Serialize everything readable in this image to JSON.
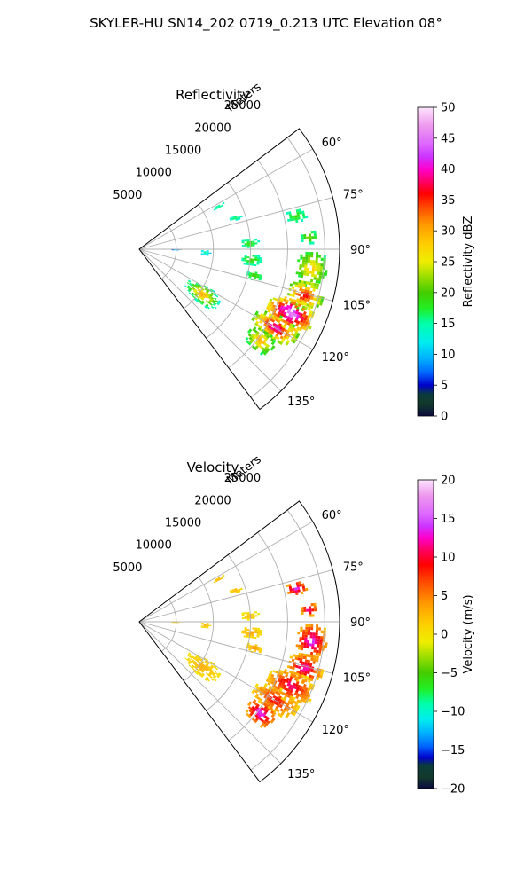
{
  "figure_title": "SKYLER-HU  SN14_202  0719_0.213 UTC Elevation 08°",
  "range_label": "Meters",
  "range_ticks": [
    "5000",
    "10000",
    "15000",
    "20000",
    "25000"
  ],
  "azimuth_ticks": [
    "60°",
    "75°",
    "90°",
    "105°",
    "120°",
    "135°"
  ],
  "chart_data": [
    {
      "type": "polar-sector",
      "title": "Reflectivity",
      "azimuth_range_deg": [
        53,
        143
      ],
      "range_max_m": 27000,
      "range_ticks_m": [
        5000,
        10000,
        15000,
        20000,
        25000
      ],
      "azimuth_ticks_deg": [
        60,
        75,
        90,
        105,
        120,
        135
      ],
      "grid": true,
      "colorbar": {
        "label": "Reflectivity dBZ",
        "min": 0,
        "max": 50,
        "ticks": [
          "0",
          "5",
          "10",
          "15",
          "20",
          "25",
          "30",
          "35",
          "40",
          "45",
          "50"
        ],
        "stops": [
          {
            "v": 0,
            "c": "#0b0b40"
          },
          {
            "v": 2,
            "c": "#123a2a"
          },
          {
            "v": 3.5,
            "c": "#0b3c3c"
          },
          {
            "v": 5,
            "c": "#0000cc"
          },
          {
            "v": 7,
            "c": "#0066ff"
          },
          {
            "v": 9,
            "c": "#00aaff"
          },
          {
            "v": 12,
            "c": "#00eeee"
          },
          {
            "v": 15,
            "c": "#00ffaa"
          },
          {
            "v": 17.5,
            "c": "#22ee22"
          },
          {
            "v": 20,
            "c": "#44cc00"
          },
          {
            "v": 22.5,
            "c": "#99dd00"
          },
          {
            "v": 25,
            "c": "#eeee00"
          },
          {
            "v": 28,
            "c": "#ffcc00"
          },
          {
            "v": 31,
            "c": "#ff9900"
          },
          {
            "v": 34,
            "c": "#ff4400"
          },
          {
            "v": 36,
            "c": "#ff0000"
          },
          {
            "v": 38,
            "c": "#ff0066"
          },
          {
            "v": 40,
            "c": "#ff00cc"
          },
          {
            "v": 42,
            "c": "#cc33ff"
          },
          {
            "v": 44,
            "c": "#dd66ff"
          },
          {
            "v": 47,
            "c": "#ee99ee"
          },
          {
            "v": 50,
            "c": "#fce4fc"
          }
        ]
      },
      "echo_regions": [
        {
          "az_min": 60,
          "az_max": 63,
          "r_min": 11000,
          "r_max": 13000,
          "v_min": 13,
          "v_max": 16
        },
        {
          "az_min": 70,
          "az_max": 73,
          "r_min": 12500,
          "r_max": 14500,
          "v_min": 13,
          "v_max": 17
        },
        {
          "az_min": 75,
          "az_max": 80,
          "r_min": 20000,
          "r_max": 23000,
          "v_min": 14,
          "v_max": 19
        },
        {
          "az_min": 83,
          "az_max": 88,
          "r_min": 21500,
          "r_max": 24000,
          "v_min": 14,
          "v_max": 22
        },
        {
          "az_min": 84,
          "az_max": 89,
          "r_min": 13500,
          "r_max": 16000,
          "v_min": 14,
          "v_max": 19
        },
        {
          "az_min": 90,
          "az_max": 95,
          "r_min": 8000,
          "r_max": 9500,
          "v_min": 10,
          "v_max": 15
        },
        {
          "az_min": 92,
          "az_max": 98,
          "r_min": 13500,
          "r_max": 16500,
          "v_min": 14,
          "v_max": 20
        },
        {
          "az_min": 100,
          "az_max": 105,
          "r_min": 14500,
          "r_max": 17000,
          "v_min": 14,
          "v_max": 20
        },
        {
          "az_min": 90,
          "az_max": 102,
          "r_min": 21000,
          "r_max": 25500,
          "v_min": 16,
          "v_max": 28
        },
        {
          "az_min": 100,
          "az_max": 110,
          "r_min": 20500,
          "r_max": 25500,
          "v_min": 20,
          "v_max": 36
        },
        {
          "az_min": 107,
          "az_max": 118,
          "r_min": 18500,
          "r_max": 25500,
          "v_min": 24,
          "v_max": 45
        },
        {
          "az_min": 115,
          "az_max": 124,
          "r_min": 17500,
          "r_max": 24500,
          "v_min": 20,
          "v_max": 40
        },
        {
          "az_min": 122,
          "az_max": 131,
          "r_min": 18000,
          "r_max": 22500,
          "v_min": 16,
          "v_max": 30
        },
        {
          "az_min": 118,
          "az_max": 132,
          "r_min": 7500,
          "r_max": 13000,
          "v_min": 13,
          "v_max": 30
        },
        {
          "az_min": 89,
          "az_max": 92,
          "r_min": 4000,
          "r_max": 5500,
          "v_min": 3,
          "v_max": 12
        }
      ]
    },
    {
      "type": "polar-sector",
      "title": "Velocity",
      "azimuth_range_deg": [
        53,
        143
      ],
      "range_max_m": 27000,
      "range_ticks_m": [
        5000,
        10000,
        15000,
        20000,
        25000
      ],
      "azimuth_ticks_deg": [
        60,
        75,
        90,
        105,
        120,
        135
      ],
      "grid": true,
      "colorbar": {
        "label": "Velocity (m/s)",
        "min": -20,
        "max": 20,
        "ticks": [
          "−20",
          "−15",
          "−10",
          "−5",
          "0",
          "5",
          "10",
          "15",
          "20"
        ],
        "stops": [
          {
            "v": -20,
            "c": "#0b0b40"
          },
          {
            "v": -18.5,
            "c": "#123a2a"
          },
          {
            "v": -17,
            "c": "#0b3c3c"
          },
          {
            "v": -16,
            "c": "#0000cc"
          },
          {
            "v": -14.5,
            "c": "#0066ff"
          },
          {
            "v": -13,
            "c": "#00aaff"
          },
          {
            "v": -11,
            "c": "#00eeee"
          },
          {
            "v": -9,
            "c": "#00ffaa"
          },
          {
            "v": -7,
            "c": "#22ee22"
          },
          {
            "v": -5,
            "c": "#44cc00"
          },
          {
            "v": -3,
            "c": "#99dd00"
          },
          {
            "v": -1,
            "c": "#eeee00"
          },
          {
            "v": 1.5,
            "c": "#ffcc00"
          },
          {
            "v": 4,
            "c": "#ff9900"
          },
          {
            "v": 7,
            "c": "#ff4400"
          },
          {
            "v": 9,
            "c": "#ff0000"
          },
          {
            "v": 11,
            "c": "#ff0066"
          },
          {
            "v": 12.5,
            "c": "#ff00cc"
          },
          {
            "v": 14,
            "c": "#cc33ff"
          },
          {
            "v": 15.5,
            "c": "#dd66ff"
          },
          {
            "v": 18,
            "c": "#ee99ee"
          },
          {
            "v": 20,
            "c": "#fce4fc"
          }
        ]
      },
      "echo_regions": [
        {
          "az_min": 60,
          "az_max": 63,
          "r_min": 11000,
          "r_max": 13000,
          "v_min": 0,
          "v_max": 3
        },
        {
          "az_min": 70,
          "az_max": 73,
          "r_min": 12500,
          "r_max": 14500,
          "v_min": 0,
          "v_max": 3
        },
        {
          "az_min": 75,
          "az_max": 80,
          "r_min": 20000,
          "r_max": 23000,
          "v_min": 3,
          "v_max": 14
        },
        {
          "az_min": 83,
          "az_max": 88,
          "r_min": 21500,
          "r_max": 24000,
          "v_min": 2,
          "v_max": 12
        },
        {
          "az_min": 84,
          "az_max": 89,
          "r_min": 13500,
          "r_max": 16000,
          "v_min": -1,
          "v_max": 3
        },
        {
          "az_min": 90,
          "az_max": 95,
          "r_min": 8000,
          "r_max": 9500,
          "v_min": 0,
          "v_max": 3
        },
        {
          "az_min": 92,
          "az_max": 98,
          "r_min": 13500,
          "r_max": 16500,
          "v_min": 0,
          "v_max": 4
        },
        {
          "az_min": 100,
          "az_max": 105,
          "r_min": 14500,
          "r_max": 17000,
          "v_min": 0,
          "v_max": 4
        },
        {
          "az_min": 90,
          "az_max": 102,
          "r_min": 21000,
          "r_max": 25500,
          "v_min": 2,
          "v_max": 14
        },
        {
          "az_min": 100,
          "az_max": 110,
          "r_min": 20500,
          "r_max": 25500,
          "v_min": 2,
          "v_max": 12
        },
        {
          "az_min": 107,
          "az_max": 118,
          "r_min": 18500,
          "r_max": 25500,
          "v_min": 1,
          "v_max": 11
        },
        {
          "az_min": 115,
          "az_max": 124,
          "r_min": 17500,
          "r_max": 24500,
          "v_min": 1,
          "v_max": 9
        },
        {
          "az_min": 122,
          "az_max": 131,
          "r_min": 18000,
          "r_max": 22500,
          "v_min": 3,
          "v_max": 14
        },
        {
          "az_min": 118,
          "az_max": 132,
          "r_min": 7500,
          "r_max": 13000,
          "v_min": 0,
          "v_max": 3
        },
        {
          "az_min": 89,
          "az_max": 92,
          "r_min": 4000,
          "r_max": 5500,
          "v_min": 0,
          "v_max": 2
        }
      ]
    }
  ]
}
